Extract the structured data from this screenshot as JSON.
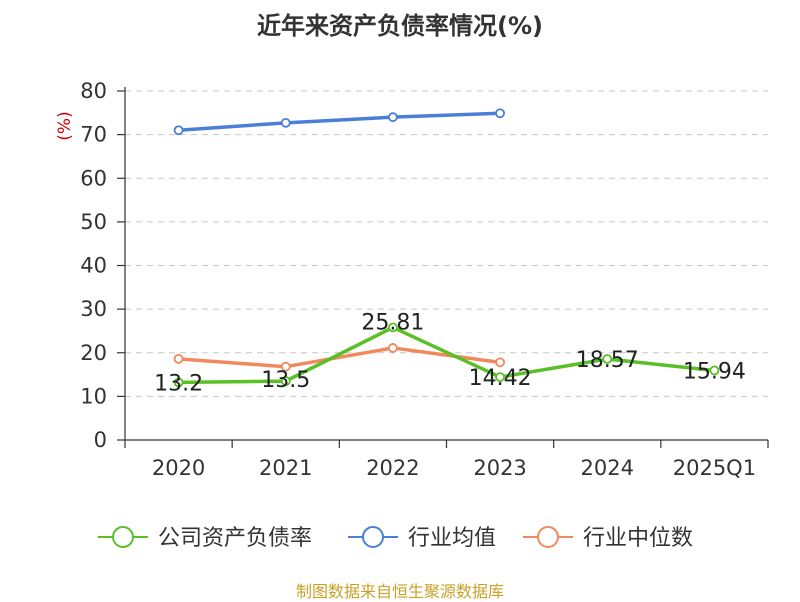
{
  "title": "近年来资产负债率情况(%)",
  "source": "制图数据来自恒生聚源数据库",
  "chart_data": {
    "type": "line",
    "title": "近年来资产负债率情况(%)",
    "ylabel": "(%)",
    "xlabel": "",
    "categories": [
      "2020",
      "2021",
      "2022",
      "2023",
      "2024",
      "2025Q1"
    ],
    "ylim": [
      0,
      80
    ],
    "yticks": [
      0,
      10,
      20,
      30,
      40,
      50,
      60,
      70,
      80
    ],
    "grid": true,
    "legend_position": "bottom",
    "series": [
      {
        "name": "公司资产负债率",
        "color": "#5ac026",
        "values": [
          13.2,
          13.5,
          25.81,
          14.42,
          18.57,
          15.94
        ],
        "labels": [
          "13.2",
          "13.5",
          "25.81",
          "14.42",
          "18.57",
          "15.94"
        ]
      },
      {
        "name": "行业均值",
        "color": "#4a7fd6",
        "values": [
          71.0,
          72.7,
          74.0,
          74.9,
          null,
          null
        ],
        "labels": null
      },
      {
        "name": "行业中位数",
        "color": "#f08a5d",
        "values": [
          18.6,
          16.8,
          21.1,
          17.8,
          null,
          null
        ],
        "labels": null
      }
    ]
  }
}
